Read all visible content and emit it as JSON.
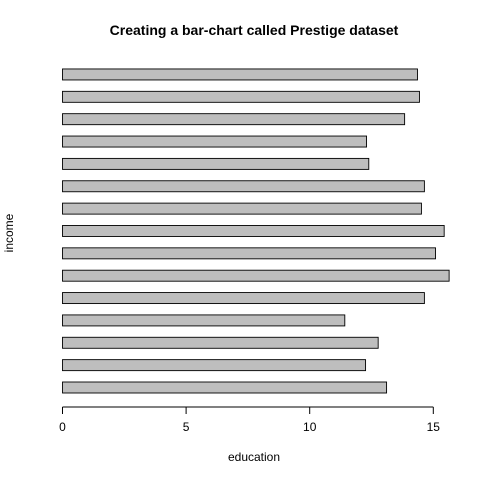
{
  "chart_data": {
    "type": "bar",
    "orientation": "horizontal",
    "title": "Creating a bar-chart called Prestige dataset",
    "xlabel": "education",
    "ylabel": "income",
    "xlim": [
      0,
      16.4
    ],
    "xticks": [
      0,
      5,
      10,
      15
    ],
    "values": [
      13.11,
      12.26,
      12.77,
      11.42,
      14.64,
      15.64,
      15.09,
      15.44,
      14.52,
      14.64,
      12.39,
      12.3,
      13.84,
      14.44,
      14.36
    ],
    "bar_color": "#bebebe",
    "border_color": "#000000",
    "grid": false,
    "legend": "none"
  }
}
